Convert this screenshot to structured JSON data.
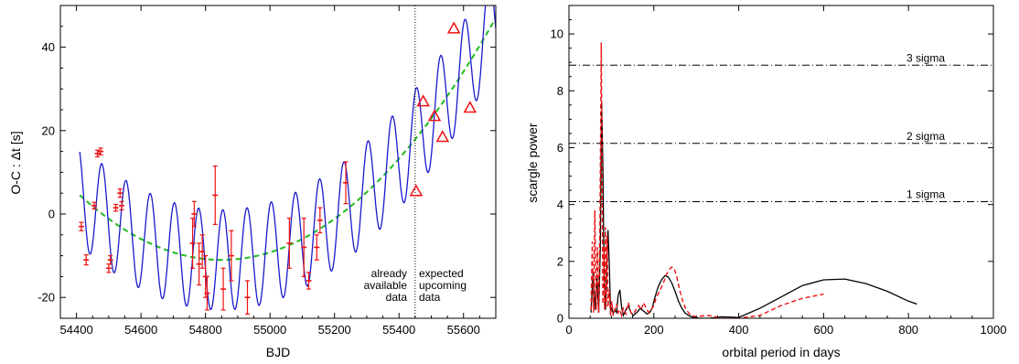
{
  "chart_data": [
    {
      "type": "line",
      "xlabel": "BJD",
      "ylabel": "O-C : Δt [s]",
      "xlim": [
        54350,
        55700
      ],
      "ylim": [
        -25,
        50
      ],
      "xticks": [
        54400,
        54600,
        54800,
        55000,
        55200,
        55400,
        55600
      ],
      "yticks": [
        -20,
        0,
        20,
        40
      ],
      "divider_x": 55450,
      "annotations": {
        "left": [
          "already",
          "available",
          "data"
        ],
        "right": [
          "expected",
          "upcoming",
          "data"
        ]
      },
      "colors": {
        "model": "#1a1acc",
        "trend": "#22bb22",
        "points": "#ee1111"
      },
      "model": {
        "quad_vertex_x": 54850,
        "quad_min": -11,
        "quad_at_55700": 47,
        "amplitude": 12,
        "period_days": 75,
        "phase_x": 54460
      },
      "observed": [
        {
          "x": 54415,
          "y": -3,
          "err": 1
        },
        {
          "x": 54430,
          "y": -11,
          "err": 1.2
        },
        {
          "x": 54455,
          "y": 2,
          "err": 0.8
        },
        {
          "x": 54465,
          "y": 14.5,
          "err": 0.8
        },
        {
          "x": 54475,
          "y": 15,
          "err": 0.8
        },
        {
          "x": 54500,
          "y": -13,
          "err": 1
        },
        {
          "x": 54505,
          "y": -11,
          "err": 1
        },
        {
          "x": 54522,
          "y": 1.5,
          "err": 0.8
        },
        {
          "x": 54535,
          "y": 5,
          "err": 1
        },
        {
          "x": 54540,
          "y": 2,
          "err": 1
        },
        {
          "x": 54760,
          "y": -7,
          "err": 6
        },
        {
          "x": 54765,
          "y": 0,
          "err": 3
        },
        {
          "x": 54780,
          "y": -12,
          "err": 5
        },
        {
          "x": 54790,
          "y": -9,
          "err": 4
        },
        {
          "x": 54800,
          "y": -15,
          "err": 5
        },
        {
          "x": 54805,
          "y": -19,
          "err": 4
        },
        {
          "x": 54830,
          "y": 4.5,
          "err": 7
        },
        {
          "x": 54855,
          "y": -18,
          "err": 5
        },
        {
          "x": 54880,
          "y": -10,
          "err": 6
        },
        {
          "x": 54930,
          "y": -20,
          "err": 4
        },
        {
          "x": 55060,
          "y": -7,
          "err": 6
        },
        {
          "x": 55105,
          "y": -8,
          "err": 7
        },
        {
          "x": 55120,
          "y": -16,
          "err": 2
        },
        {
          "x": 55145,
          "y": -8,
          "err": 3
        },
        {
          "x": 55155,
          "y": -1.5,
          "err": 3
        },
        {
          "x": 55235,
          "y": 7.5,
          "err": 5
        }
      ],
      "expected": [
        {
          "x": 55453,
          "y": 5.5
        },
        {
          "x": 55475,
          "y": 27
        },
        {
          "x": 55510,
          "y": 23.5
        },
        {
          "x": 55535,
          "y": 18.5
        },
        {
          "x": 55570,
          "y": 44.5
        },
        {
          "x": 55620,
          "y": 25.5
        }
      ]
    },
    {
      "type": "line",
      "xlabel": "orbital period in days",
      "ylabel": "scargle power",
      "xlim": [
        0,
        1000
      ],
      "ylim": [
        0,
        11
      ],
      "xticks": [
        0,
        200,
        400,
        600,
        800,
        1000
      ],
      "yticks": [
        0,
        2,
        4,
        6,
        8,
        10
      ],
      "sigma_lines": [
        {
          "label": "3 sigma",
          "value": 8.9
        },
        {
          "label": "2 sigma",
          "value": 6.15
        },
        {
          "label": "1 sigma",
          "value": 4.1
        }
      ],
      "colors": {
        "black": "#000000",
        "red": "#ee1111"
      },
      "series": [
        {
          "style": "solid",
          "x": [
            52,
            57,
            62,
            66,
            70,
            74,
            77,
            80,
            83,
            86,
            89,
            92,
            95,
            98,
            101,
            104,
            108,
            112,
            116,
            120,
            124,
            128,
            134,
            140,
            146,
            152,
            160,
            168,
            176,
            184,
            190,
            196,
            202,
            210,
            218,
            226,
            234,
            242,
            250,
            258,
            266,
            274,
            284,
            296,
            310,
            330,
            360,
            400,
            450,
            500,
            550,
            600,
            650,
            700,
            750,
            800,
            820
          ],
          "y": [
            0.2,
            1.6,
            0.3,
            1.4,
            0.2,
            2.5,
            7.6,
            5.3,
            1.2,
            0.3,
            1.8,
            3.1,
            1.9,
            0.2,
            0.4,
            0.15,
            0.3,
            0.2,
            0.8,
            1.0,
            0.4,
            0.1,
            0.3,
            0.45,
            0.2,
            0.1,
            0.2,
            0.35,
            0.25,
            0.15,
            0.2,
            0.35,
            0.7,
            1.1,
            1.35,
            1.5,
            1.45,
            1.25,
            0.95,
            0.6,
            0.35,
            0.18,
            0.08,
            0.02,
            0.0,
            0.0,
            0.05,
            0.03,
            0.35,
            0.75,
            1.15,
            1.35,
            1.38,
            1.22,
            0.95,
            0.6,
            0.5
          ]
        },
        {
          "style": "dashed",
          "x": [
            52,
            55,
            58,
            61,
            64,
            67,
            70,
            73,
            76,
            78,
            80,
            82,
            84,
            86,
            88,
            90,
            92,
            95,
            98,
            101,
            104,
            108,
            112,
            116,
            120,
            124,
            128,
            134,
            140,
            146,
            152,
            158,
            164,
            170,
            176,
            182,
            188,
            194,
            200,
            206,
            212,
            218,
            224,
            230,
            236,
            242,
            248,
            254,
            260,
            268,
            276,
            286,
            298,
            312,
            330,
            360,
            400,
            450,
            500,
            550,
            600
          ],
          "y": [
            0.3,
            2.7,
            0.2,
            3.8,
            0.3,
            2.5,
            0.2,
            3.5,
            9.7,
            5.0,
            0.5,
            2.5,
            0.3,
            3.2,
            0.4,
            2.9,
            0.4,
            1.0,
            0.1,
            0.6,
            0.1,
            0.3,
            0.5,
            0.2,
            0.3,
            0.1,
            0.35,
            0.15,
            0.55,
            0.2,
            0.15,
            0.3,
            0.45,
            0.3,
            0.55,
            0.35,
            0.2,
            0.3,
            0.45,
            0.75,
            0.9,
            1.1,
            1.3,
            1.55,
            1.7,
            1.8,
            1.75,
            1.45,
            1.05,
            0.6,
            0.3,
            0.12,
            0.05,
            0.08,
            0.1,
            0.0,
            0.0,
            0.1,
            0.45,
            0.7,
            0.85
          ]
        }
      ]
    }
  ]
}
